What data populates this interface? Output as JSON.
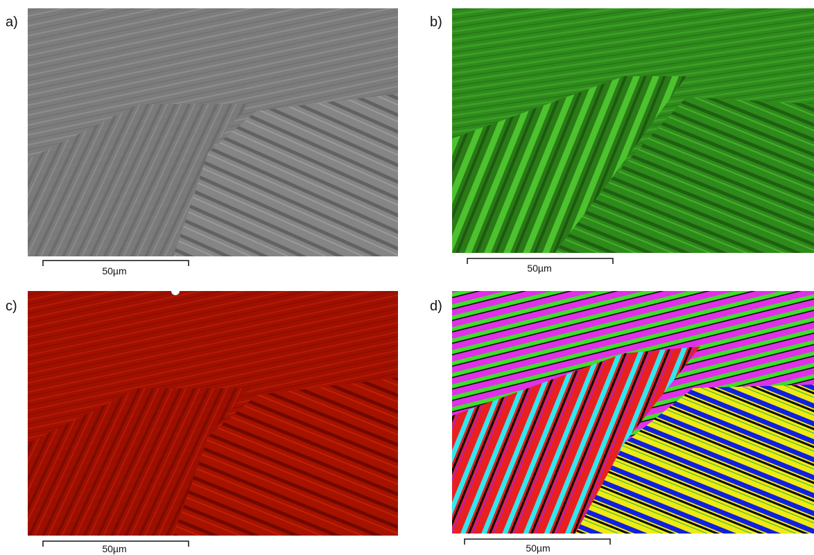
{
  "panels": [
    {
      "label": "a)",
      "scale_bar": "50µm"
    },
    {
      "label": "b)",
      "scale_bar": "50µm"
    },
    {
      "label": "c)",
      "scale_bar": "50µm"
    },
    {
      "label": "d)",
      "scale_bar": "50µm"
    }
  ]
}
